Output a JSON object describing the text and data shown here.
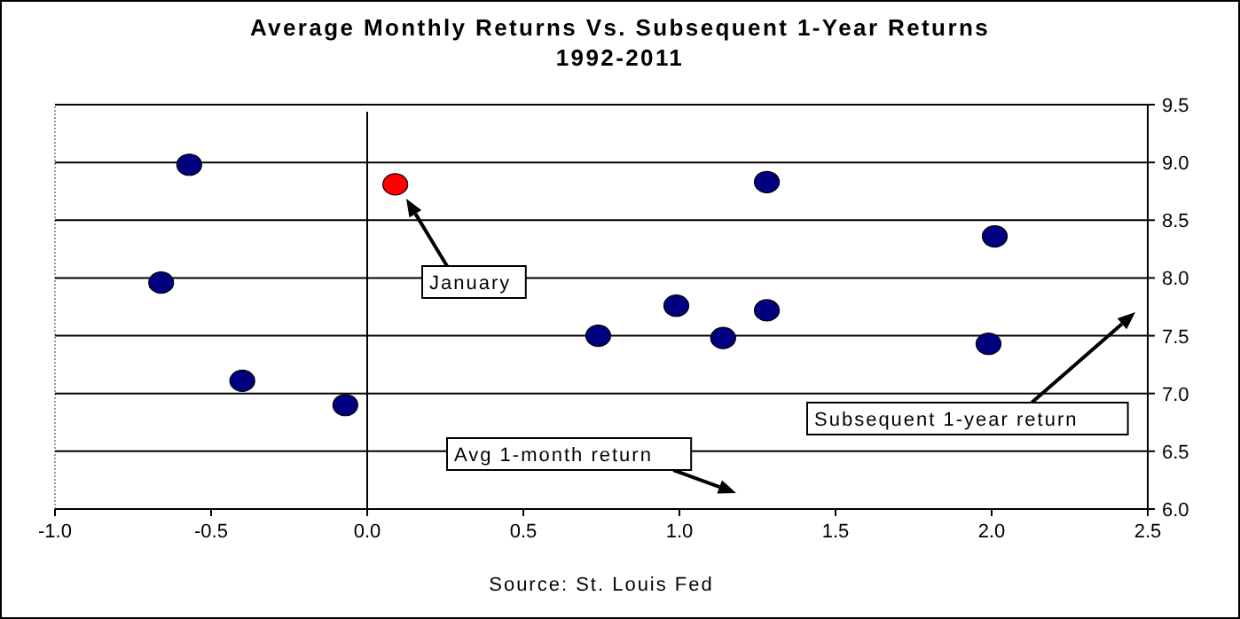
{
  "chart_data": {
    "type": "scatter",
    "title": "Average Monthly Returns Vs. Subsequent 1-Year Returns",
    "subtitle": "1992-2011",
    "x": [
      -0.57,
      -0.66,
      -0.4,
      -0.07,
      0.09,
      0.74,
      0.99,
      1.14,
      1.28,
      1.28,
      2.01,
      1.99
    ],
    "values": [
      8.98,
      7.96,
      7.11,
      6.9,
      8.81,
      7.5,
      7.76,
      7.48,
      8.83,
      7.72,
      8.36,
      7.43
    ],
    "colors": [
      "#000080",
      "#000080",
      "#000080",
      "#000080",
      "#ff0000",
      "#000080",
      "#000080",
      "#000080",
      "#000080",
      "#000080",
      "#000080",
      "#000080"
    ],
    "xlim": [
      -1,
      2.5
    ],
    "xticks": [
      {
        "value": -1,
        "label": "-1.0"
      },
      -0.5,
      {
        "value": 0,
        "label": "0.0"
      },
      0.5,
      {
        "value": 1,
        "label": "1.0"
      },
      1.5,
      {
        "value": 2,
        "label": "2.0"
      },
      2.5
    ],
    "ylim": [
      6,
      9.5
    ],
    "yticks": [
      {
        "value": 6,
        "label": "6.0"
      },
      6.5,
      {
        "value": 7,
        "label": "7.0"
      },
      7.5,
      {
        "value": 8,
        "label": "8.0"
      },
      8.5,
      {
        "value": 9,
        "label": "9.0"
      },
      9.5
    ],
    "grid": "y",
    "marker": "circle",
    "ref_lines": [
      {
        "axis": "x",
        "value": 0,
        "color": "#000000"
      }
    ],
    "annotations": [
      "January",
      "Avg 1-month return",
      "Subsequent 1-year return",
      "Source: St. Louis Fed"
    ]
  }
}
